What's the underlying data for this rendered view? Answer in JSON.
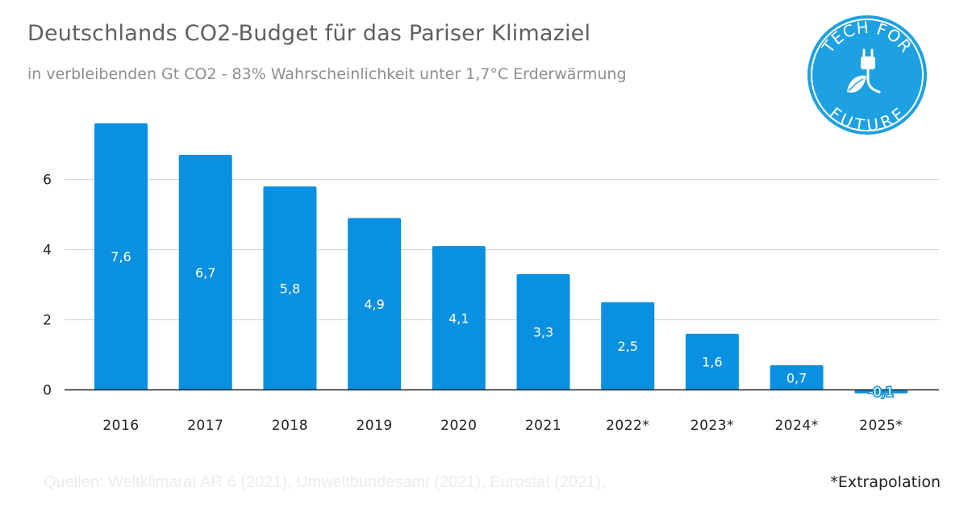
{
  "header": {
    "title": "Deutschlands CO2-Budget für das Pariser Klimaziel",
    "subtitle": "in verbleibenden Gt CO2 - 83% Wahrscheinlichkeit unter 1,7°C Erderwärmung"
  },
  "logo": {
    "text_top": "TECH FOR",
    "text_bottom": "FUTURE",
    "icons": [
      "plug-icon",
      "leaf-icon"
    ],
    "color": "#1da1e2"
  },
  "chart_data": {
    "type": "bar",
    "categories": [
      "2016",
      "2017",
      "2018",
      "2019",
      "2020",
      "2021",
      "2022*",
      "2023*",
      "2024*",
      "2025*"
    ],
    "values": [
      7.6,
      6.7,
      5.8,
      4.9,
      4.1,
      3.3,
      2.5,
      1.6,
      0.7,
      -0.1
    ],
    "data_labels": [
      "7,6",
      "6,7",
      "5,8",
      "4,9",
      "4,1",
      "3,3",
      "2,5",
      "1,6",
      "0,7",
      "-0,1"
    ],
    "yticks": [
      0,
      2,
      4,
      6
    ],
    "ytick_labels": [
      "0",
      "2",
      "4",
      "6"
    ],
    "ylim": [
      -0.2,
      8
    ],
    "grid": true,
    "legend": "none",
    "bar_color": "#0a90e0",
    "label_color": "#ffffff",
    "gridline_color": "#d9d9d9",
    "axis_color": "#222222"
  },
  "footer": {
    "source": "Quellen: Weltklimarat AR 6 (2021), Umweltbundesamt (2021), Eurostat (2021),",
    "footnote": "*Extrapolation"
  }
}
